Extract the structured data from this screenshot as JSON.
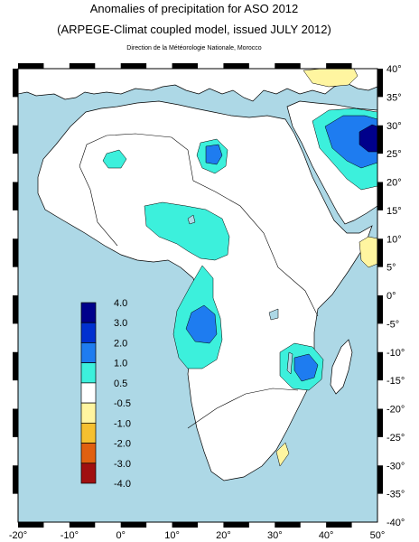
{
  "header": {
    "title": "Anomalies of precipitation for ASO 2012",
    "subtitle": "(ARPEGE-Climat coupled model, issued JULY 2012)",
    "credit": "Direction de la Météorologie Nationale, Morocco"
  },
  "map": {
    "lon_range": [
      -20,
      50
    ],
    "lat_range": [
      -40,
      40
    ],
    "lon_ticks": [
      "-20°",
      "-10°",
      "0°",
      "10°",
      "20°",
      "30°",
      "40°",
      "50°"
    ],
    "lat_ticks": [
      "40°",
      "35°",
      "30°",
      "25°",
      "20°",
      "15°",
      "10°",
      "5°",
      "0°",
      "-5°",
      "-10°",
      "-15°",
      "-20°",
      "-25°",
      "-30°",
      "-35°",
      "-40°"
    ],
    "ocean_color": "#add8e6",
    "land_color": "#ffffff"
  },
  "legend": {
    "levels": [
      {
        "label": "4.0",
        "color": "#00008b"
      },
      {
        "label": "3.0",
        "color": "#0030d0"
      },
      {
        "label": "2.0",
        "color": "#1e7cf0"
      },
      {
        "label": "1.0",
        "color": "#3cf0dc"
      },
      {
        "label": "0.5",
        "color": "#ffffff"
      },
      {
        "label": "-0.5",
        "color": "#ffffff"
      },
      {
        "label": "-1.0",
        "color": "#fff5a0"
      },
      {
        "label": "-2.0",
        "color": "#f5c030"
      },
      {
        "label": "-3.0",
        "color": "#e06010"
      },
      {
        "label": "-4.0",
        "color": "#a01010"
      }
    ]
  }
}
